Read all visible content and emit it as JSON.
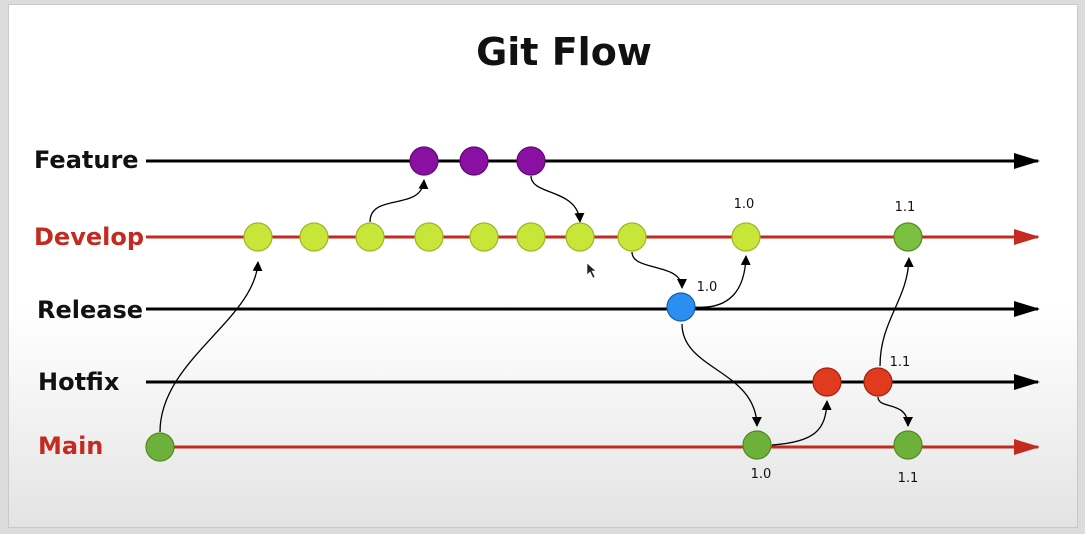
{
  "title": "Git Flow",
  "colors": {
    "black_branch": "#000000",
    "red_branch": "#c42a1f",
    "develop_commit": "#c8e63a",
    "feature_commit": "#8a0fa3",
    "release_commit": "#2a8ff0",
    "hotfix_commit": "#e03b1e",
    "main_commit": "#6eb13a"
  },
  "lanes": [
    {
      "id": "feature",
      "label": "Feature",
      "label_color": "#111111"
    },
    {
      "id": "develop",
      "label": "Develop",
      "label_color": "#c42a1f"
    },
    {
      "id": "release",
      "label": "Release",
      "label_color": "#111111"
    },
    {
      "id": "hotfix",
      "label": "Hotfix",
      "label_color": "#111111"
    },
    {
      "id": "main",
      "label": "Main",
      "label_color": "#c42a1f"
    }
  ],
  "version_labels": {
    "develop_1_0": "1.0",
    "develop_1_1": "1.1",
    "release_1_0": "1.0",
    "hotfix_1_1": "1.1",
    "main_1_0": "1.0",
    "main_1_1": "1.1"
  }
}
